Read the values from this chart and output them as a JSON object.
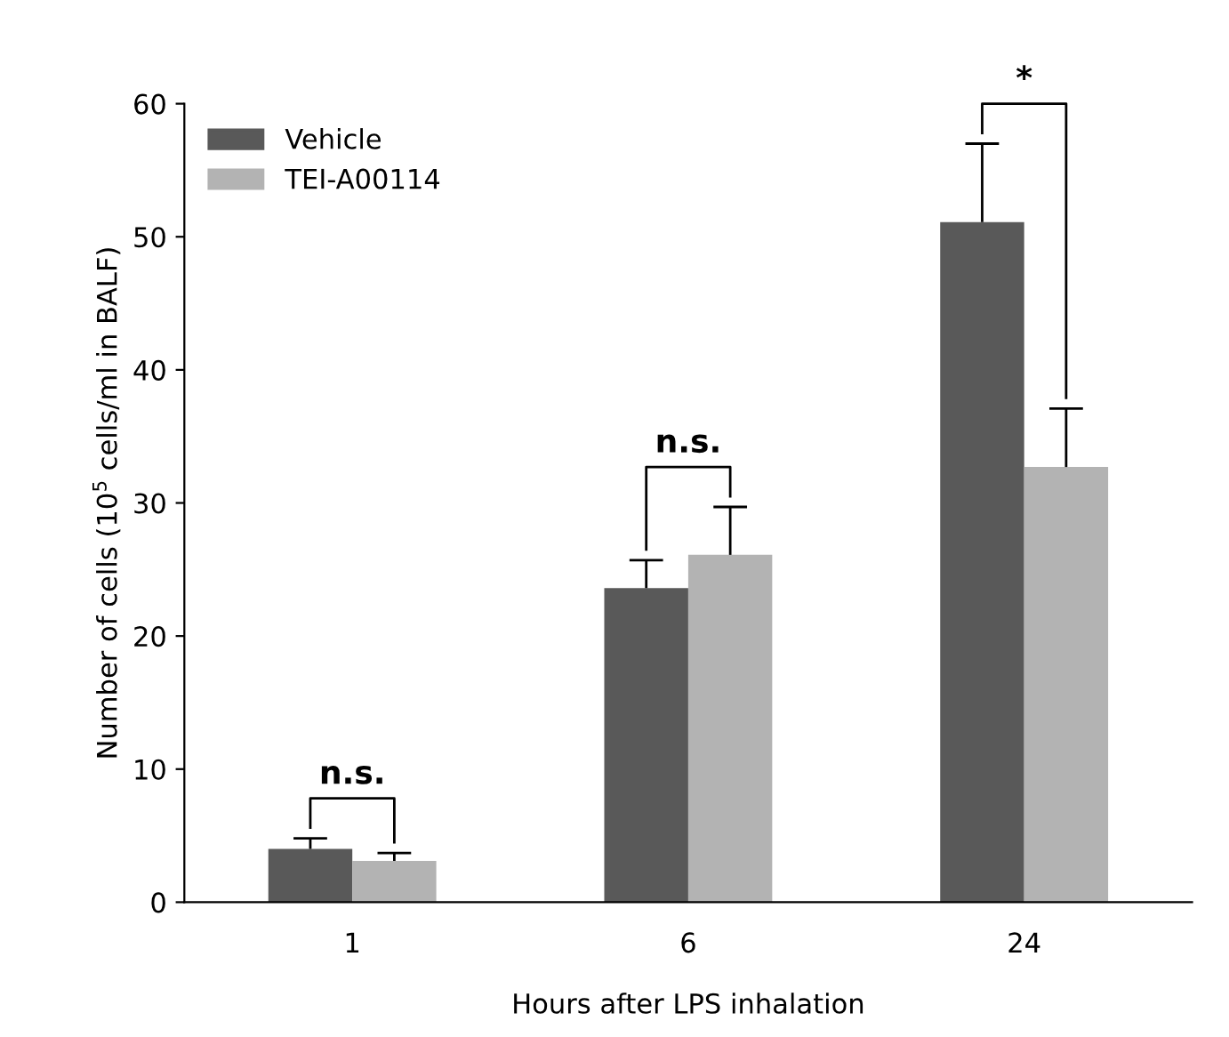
{
  "chart_data": {
    "type": "bar",
    "xlabel": "Hours after LPS inhalation",
    "ylabel": "Number of cells (10$^{5}$ cells/ml in BALF)",
    "categories": [
      "1",
      "6",
      "24"
    ],
    "series": [
      {
        "name": "Vehicle",
        "color": "#595959",
        "values": [
          4.0,
          23.6,
          51.1
        ],
        "errors": [
          [
            4.0,
            4.8
          ],
          [
            23.6,
            25.7
          ],
          [
            51.1,
            57.0
          ]
        ]
      },
      {
        "name": "TEI-A00114",
        "color": "#b3b3b3",
        "values": [
          3.1,
          26.1,
          32.7
        ],
        "errors": [
          [
            3.1,
            3.7
          ],
          [
            26.1,
            29.7
          ],
          [
            32.7,
            37.1
          ]
        ]
      }
    ],
    "ylim": [
      0,
      60
    ],
    "yticks": [
      0,
      10,
      20,
      30,
      40,
      50,
      60
    ],
    "grid": false,
    "legend": "top left",
    "annotations": [
      "n.s.",
      "n.s.",
      "*"
    ]
  }
}
